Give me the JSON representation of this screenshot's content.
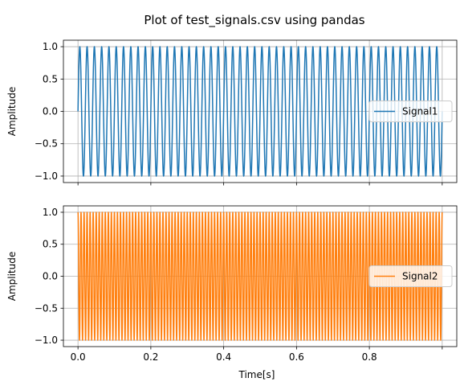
{
  "chart_data": {
    "suptitle": "Plot of test_signals.csv using pandas",
    "xlabel": "Time[s]",
    "xlim": [
      -0.04,
      1.04
    ],
    "x_ticks": [
      {
        "value": 0.0,
        "label": "0.0"
      },
      {
        "value": 0.2,
        "label": "0.2"
      },
      {
        "value": 0.4,
        "label": "0.4"
      },
      {
        "value": 0.6,
        "label": "0.6"
      },
      {
        "value": 0.8,
        "label": "0.8"
      },
      {
        "value": 1.0,
        "label": ""
      }
    ],
    "grid": true,
    "subplots": [
      {
        "type": "line",
        "ylabel": "Amplitude",
        "ylim": [
          -1.1,
          1.1
        ],
        "y_ticks": [
          {
            "value": 1.0,
            "label": "1.0"
          },
          {
            "value": 0.5,
            "label": "0.5"
          },
          {
            "value": 0.0,
            "label": "0.0"
          },
          {
            "value": -0.5,
            "label": "−0.5"
          },
          {
            "value": -1.0,
            "label": "−1.0"
          }
        ],
        "legend_position": "center-right",
        "series": [
          {
            "name": "Signal1",
            "color": "#1f77b4",
            "waveform": "sine",
            "frequency_hz": 50,
            "amplitude": 1.0,
            "x_start": 0.0,
            "x_end": 1.0
          }
        ]
      },
      {
        "type": "line",
        "ylabel": "Amplitude",
        "ylim": [
          -1.1,
          1.1
        ],
        "y_ticks": [
          {
            "value": 1.0,
            "label": "1.0"
          },
          {
            "value": 0.5,
            "label": "0.5"
          },
          {
            "value": 0.0,
            "label": "0.0"
          },
          {
            "value": -0.5,
            "label": "−0.5"
          },
          {
            "value": -1.0,
            "label": "−1.0"
          }
        ],
        "legend_position": "center-right",
        "series": [
          {
            "name": "Signal2",
            "color": "#ff7f0e",
            "waveform": "cosine",
            "frequency_hz": 120,
            "amplitude": 1.0,
            "x_start": 0.0,
            "x_end": 1.0
          }
        ]
      }
    ]
  }
}
